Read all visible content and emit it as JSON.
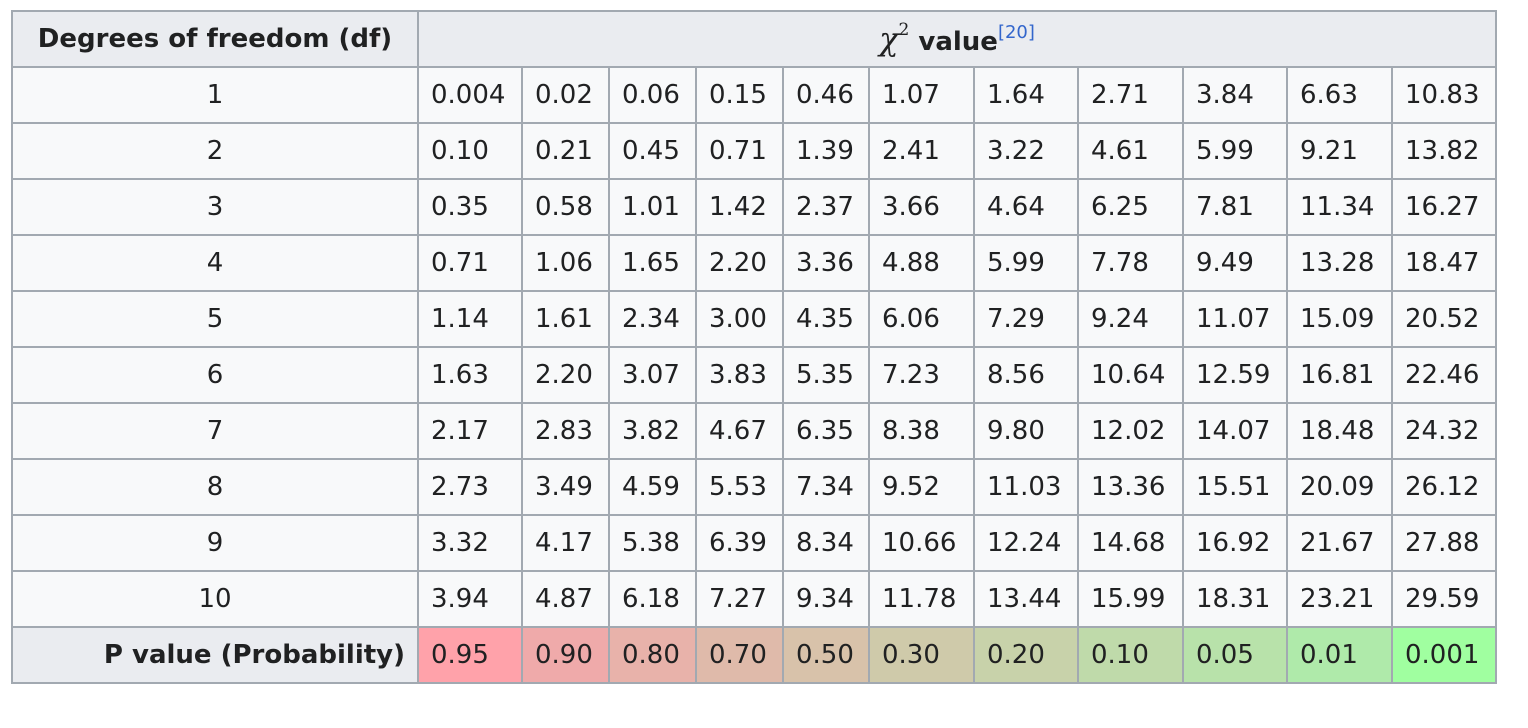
{
  "header": {
    "df_label": "Degrees of freedom (df)",
    "chi_symbol": "χ",
    "chi_exponent": "2",
    "value_label": "value",
    "reference": "[20]"
  },
  "rows": [
    {
      "df": "1",
      "values": [
        "0.004",
        "0.02",
        "0.06",
        "0.15",
        "0.46",
        "1.07",
        "1.64",
        "2.71",
        "3.84",
        "6.63",
        "10.83"
      ]
    },
    {
      "df": "2",
      "values": [
        "0.10",
        "0.21",
        "0.45",
        "0.71",
        "1.39",
        "2.41",
        "3.22",
        "4.61",
        "5.99",
        "9.21",
        "13.82"
      ]
    },
    {
      "df": "3",
      "values": [
        "0.35",
        "0.58",
        "1.01",
        "1.42",
        "2.37",
        "3.66",
        "4.64",
        "6.25",
        "7.81",
        "11.34",
        "16.27"
      ]
    },
    {
      "df": "4",
      "values": [
        "0.71",
        "1.06",
        "1.65",
        "2.20",
        "3.36",
        "4.88",
        "5.99",
        "7.78",
        "9.49",
        "13.28",
        "18.47"
      ]
    },
    {
      "df": "5",
      "values": [
        "1.14",
        "1.61",
        "2.34",
        "3.00",
        "4.35",
        "6.06",
        "7.29",
        "9.24",
        "11.07",
        "15.09",
        "20.52"
      ]
    },
    {
      "df": "6",
      "values": [
        "1.63",
        "2.20",
        "3.07",
        "3.83",
        "5.35",
        "7.23",
        "8.56",
        "10.64",
        "12.59",
        "16.81",
        "22.46"
      ]
    },
    {
      "df": "7",
      "values": [
        "2.17",
        "2.83",
        "3.82",
        "4.67",
        "6.35",
        "8.38",
        "9.80",
        "12.02",
        "14.07",
        "18.48",
        "24.32"
      ]
    },
    {
      "df": "8",
      "values": [
        "2.73",
        "3.49",
        "4.59",
        "5.53",
        "7.34",
        "9.52",
        "11.03",
        "13.36",
        "15.51",
        "20.09",
        "26.12"
      ]
    },
    {
      "df": "9",
      "values": [
        "3.32",
        "4.17",
        "5.38",
        "6.39",
        "8.34",
        "10.66",
        "12.24",
        "14.68",
        "16.92",
        "21.67",
        "27.88"
      ]
    },
    {
      "df": "10",
      "values": [
        "3.94",
        "4.87",
        "6.18",
        "7.27",
        "9.34",
        "11.78",
        "13.44",
        "15.99",
        "18.31",
        "23.21",
        "29.59"
      ]
    }
  ],
  "p_row": {
    "label": "P value (Probability)",
    "cells": [
      {
        "value": "0.95",
        "color": "#ffa2aa"
      },
      {
        "value": "0.90",
        "color": "#efaaaa"
      },
      {
        "value": "0.80",
        "color": "#e8b2aa"
      },
      {
        "value": "0.70",
        "color": "#dfbaaa"
      },
      {
        "value": "0.50",
        "color": "#d8c2aa"
      },
      {
        "value": "0.30",
        "color": "#cfcaaa"
      },
      {
        "value": "0.20",
        "color": "#c8d2aa"
      },
      {
        "value": "0.10",
        "color": "#bfdaaa"
      },
      {
        "value": "0.05",
        "color": "#b8e2aa"
      },
      {
        "value": "0.01",
        "color": "#afeaaa"
      },
      {
        "value": "0.001",
        "color": "#a0ffa0"
      }
    ]
  }
}
